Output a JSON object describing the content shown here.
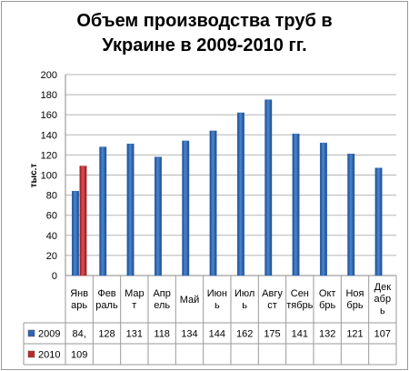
{
  "chart_data": {
    "type": "bar",
    "title_lines": [
      "Объем производства труб в",
      "Украине в 2009-2010 гг."
    ],
    "ylabel": "тыс.т",
    "xlabel": "",
    "ylim": [
      0,
      200
    ],
    "yticks": [
      "0",
      "20",
      "40",
      "60",
      "80",
      "100",
      "120",
      "140",
      "160",
      "180",
      "200"
    ],
    "categories": [
      [
        "Янв",
        "арь"
      ],
      [
        "Фев",
        "раль"
      ],
      [
        "Мар",
        "т"
      ],
      [
        "Апр",
        "ель"
      ],
      [
        "Май"
      ],
      [
        "Июн",
        "ь"
      ],
      [
        "Июл",
        "ь"
      ],
      [
        "Авгу",
        "ст"
      ],
      [
        "Сен",
        "тябрь"
      ],
      [
        "Окт",
        "брь"
      ],
      [
        "Ноя",
        "брь"
      ],
      [
        "Дек",
        "абр",
        "ь"
      ]
    ],
    "series": [
      {
        "name": "2009",
        "color": "#2e64b0",
        "values": [
          84,
          128,
          131,
          118,
          134,
          144,
          162,
          175,
          141,
          132,
          121,
          107
        ],
        "labels": [
          "84,",
          "128",
          "131",
          "118",
          "134",
          "144",
          "162",
          "175",
          "141",
          "132",
          "121",
          "107"
        ]
      },
      {
        "name": "2010",
        "color": "#c0262b",
        "values": [
          109,
          null,
          null,
          null,
          null,
          null,
          null,
          null,
          null,
          null,
          null,
          null
        ],
        "labels": [
          "109",
          "",
          "",
          "",
          "",
          "",
          "",
          "",
          "",
          "",
          "",
          ""
        ]
      }
    ],
    "grid": true,
    "legend": "data-table"
  }
}
